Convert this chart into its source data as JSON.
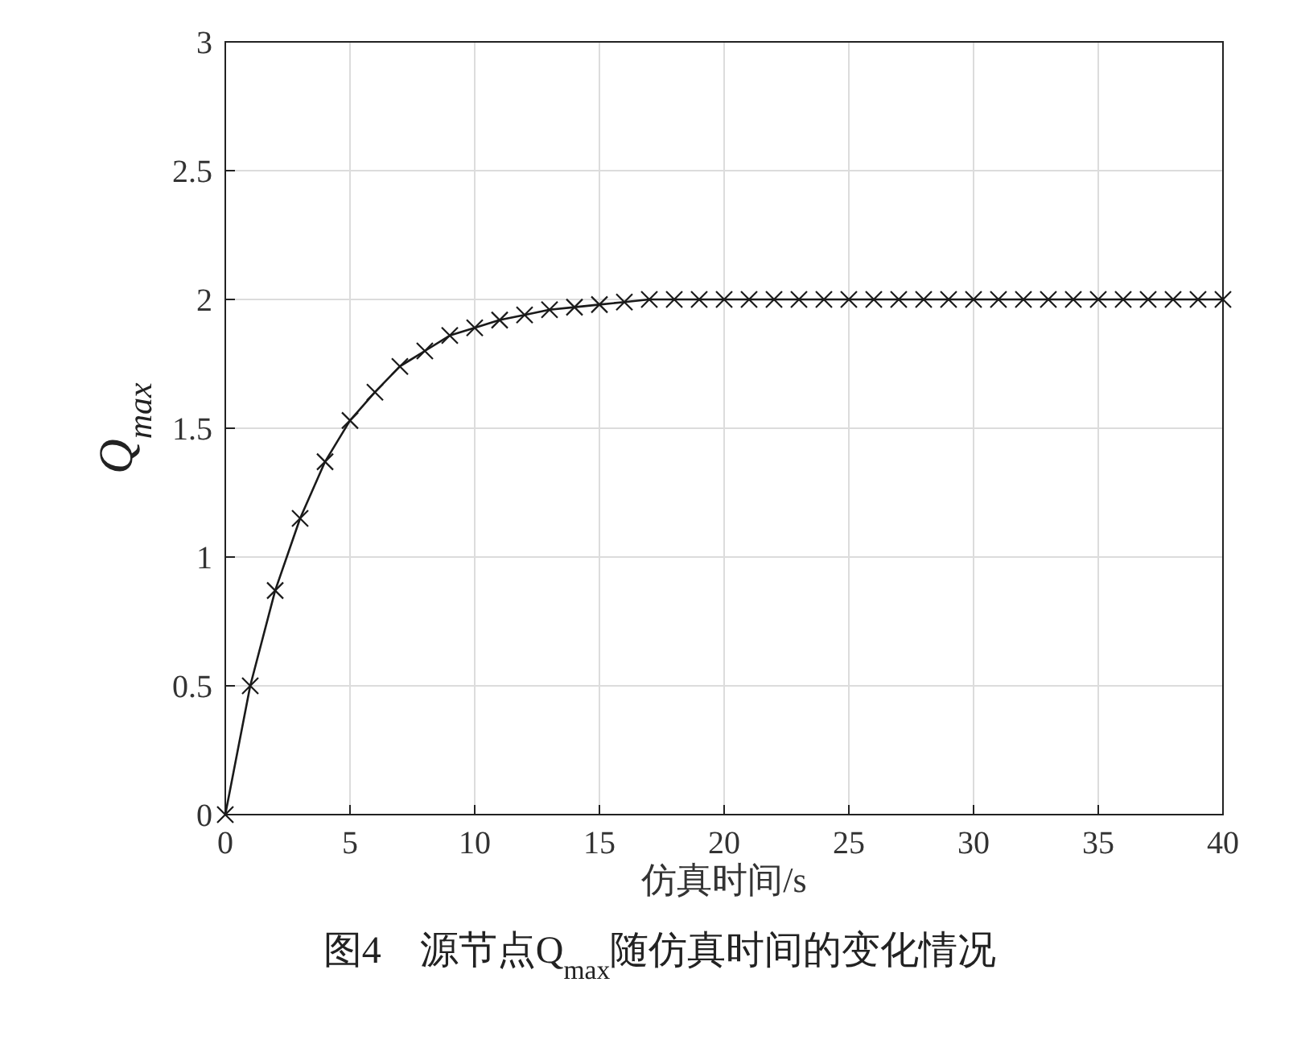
{
  "chart_data": {
    "type": "line",
    "title": "图4　源节点Q$_{max}$随仿真时间的变化情况",
    "xlabel": "仿真时间/s",
    "ylabel": "Q$_{max}$",
    "x": [
      0,
      1,
      2,
      3,
      4,
      5,
      6,
      7,
      8,
      9,
      10,
      11,
      12,
      13,
      14,
      15,
      16,
      17,
      18,
      19,
      20,
      21,
      22,
      23,
      24,
      25,
      26,
      27,
      28,
      29,
      30,
      31,
      32,
      33,
      34,
      35,
      36,
      37,
      38,
      39,
      40
    ],
    "series": [
      {
        "color": "#1a1a1a",
        "values": [
          0,
          0.5,
          0.87,
          1.15,
          1.37,
          1.53,
          1.64,
          1.74,
          1.8,
          1.86,
          1.89,
          1.92,
          1.94,
          1.96,
          1.97,
          1.98,
          1.99,
          2,
          2,
          2,
          2,
          2,
          2,
          2,
          2,
          2,
          2,
          2,
          2,
          2,
          2,
          2,
          2,
          2,
          2,
          2,
          2,
          2,
          2,
          2,
          2
        ]
      }
    ],
    "xlim": [
      0,
      40
    ],
    "xticks": [
      0,
      5,
      10,
      15,
      20,
      25,
      30,
      35,
      40
    ],
    "ylim": [
      0,
      3
    ],
    "yticks": [
      0,
      0.5,
      1,
      1.5,
      2,
      2.5,
      3
    ],
    "grid": true,
    "marker": "cross",
    "line_style": "solid"
  }
}
